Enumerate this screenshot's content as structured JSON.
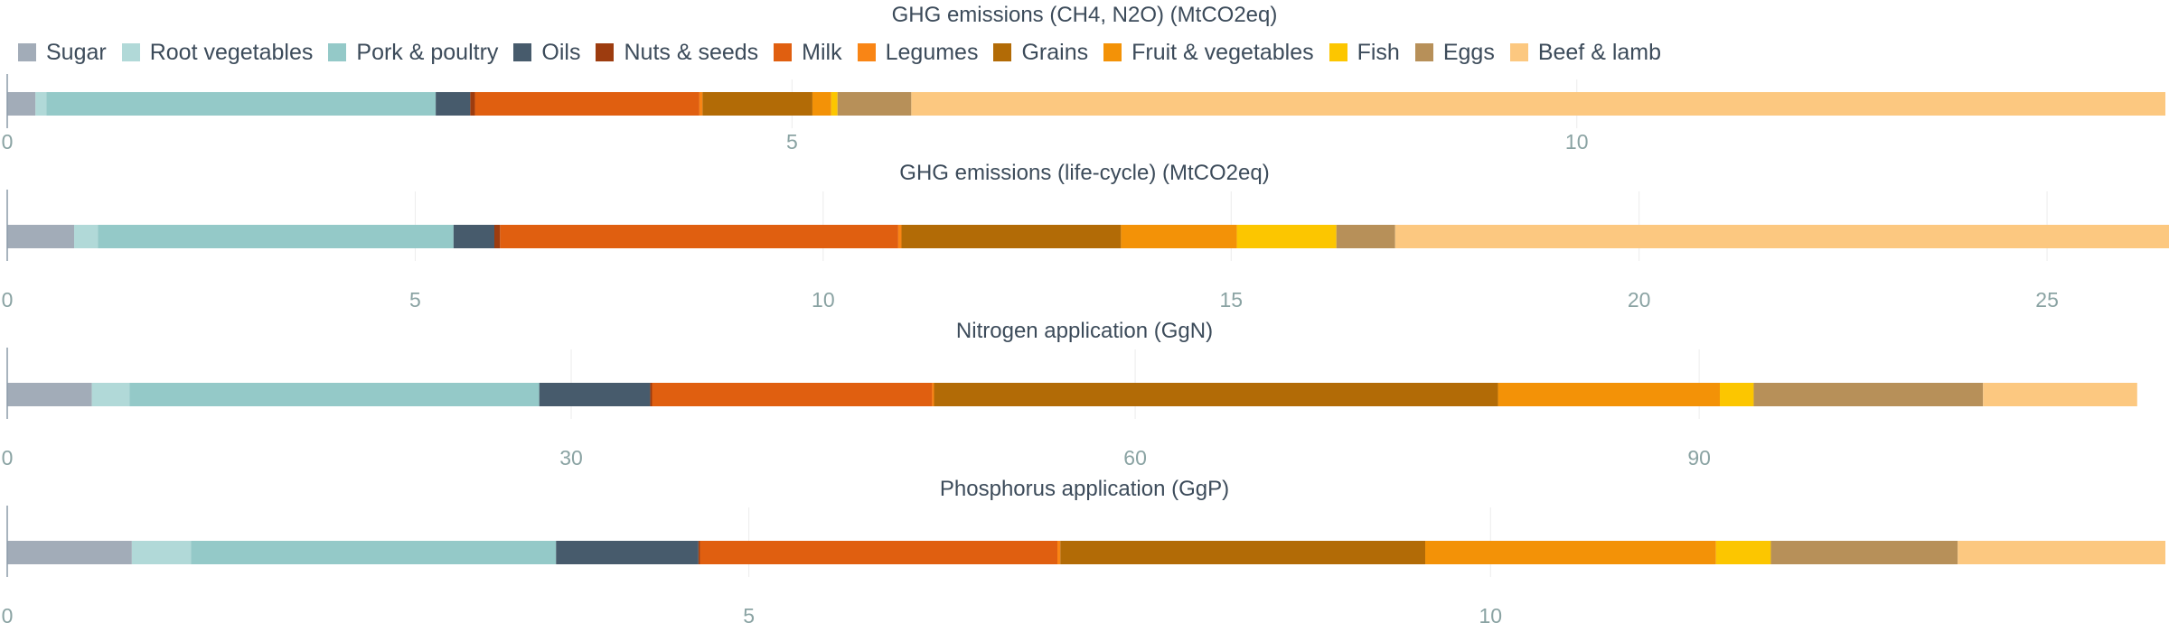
{
  "legend": [
    {
      "name": "Sugar",
      "color": "#a2acb8"
    },
    {
      "name": "Root vegetables",
      "color": "#b1d9d8"
    },
    {
      "name": "Pork & poultry",
      "color": "#94c9c8"
    },
    {
      "name": "Oils",
      "color": "#475b6c"
    },
    {
      "name": "Nuts & seeds",
      "color": "#9d3c0f"
    },
    {
      "name": "Milk",
      "color": "#e05f10"
    },
    {
      "name": "Legumes",
      "color": "#f98515"
    },
    {
      "name": "Grains",
      "color": "#b26b06"
    },
    {
      "name": "Fruit & vegetables",
      "color": "#f39207"
    },
    {
      "name": "Fish",
      "color": "#fcc600"
    },
    {
      "name": "Eggs",
      "color": "#b79059"
    },
    {
      "name": "Beef & lamb",
      "color": "#fcc880"
    }
  ],
  "chart_data": [
    {
      "type": "bar",
      "orientation": "horizontal",
      "stacked": true,
      "title": "GHG emissions (CH4, N2O) (MtCO2eq)",
      "xlim": [
        0,
        13.75
      ],
      "ticks": [
        0,
        5,
        10
      ],
      "tick_labels": [
        "0",
        "5",
        "10"
      ],
      "series": [
        {
          "name": "Sugar",
          "value": 0.18
        },
        {
          "name": "Root vegetables",
          "value": 0.07
        },
        {
          "name": "Pork & poultry",
          "value": 2.48
        },
        {
          "name": "Oils",
          "value": 0.22
        },
        {
          "name": "Nuts & seeds",
          "value": 0.03
        },
        {
          "name": "Milk",
          "value": 1.43
        },
        {
          "name": "Legumes",
          "value": 0.02
        },
        {
          "name": "Grains",
          "value": 0.7
        },
        {
          "name": "Fruit & vegetables",
          "value": 0.12
        },
        {
          "name": "Fish",
          "value": 0.04
        },
        {
          "name": "Eggs",
          "value": 0.47
        },
        {
          "name": "Beef & lamb",
          "value": 7.99
        }
      ]
    },
    {
      "type": "bar",
      "orientation": "horizontal",
      "stacked": true,
      "title": "GHG emissions (life-cycle) (MtCO2eq)",
      "xlim": [
        0,
        26.45
      ],
      "ticks": [
        0,
        5,
        10,
        15,
        20,
        25
      ],
      "tick_labels": [
        "0",
        "5",
        "10",
        "15",
        "20",
        "25"
      ],
      "series": [
        {
          "name": "Sugar",
          "value": 0.82
        },
        {
          "name": "Root vegetables",
          "value": 0.29
        },
        {
          "name": "Pork & poultry",
          "value": 4.36
        },
        {
          "name": "Oils",
          "value": 0.5
        },
        {
          "name": "Nuts & seeds",
          "value": 0.07
        },
        {
          "name": "Milk",
          "value": 4.88
        },
        {
          "name": "Legumes",
          "value": 0.04
        },
        {
          "name": "Grains",
          "value": 2.69
        },
        {
          "name": "Fruit & vegetables",
          "value": 1.42
        },
        {
          "name": "Fish",
          "value": 1.22
        },
        {
          "name": "Eggs",
          "value": 0.72
        },
        {
          "name": "Beef & lamb",
          "value": 9.49
        }
      ]
    },
    {
      "type": "bar",
      "orientation": "horizontal",
      "stacked": true,
      "title": "Nitrogen application (GgN)",
      "xlim": [
        0,
        114.8
      ],
      "ticks": [
        0,
        30,
        60,
        90
      ],
      "tick_labels": [
        "0",
        "30",
        "60",
        "90"
      ],
      "series": [
        {
          "name": "Sugar",
          "value": 4.5
        },
        {
          "name": "Root vegetables",
          "value": 2.0
        },
        {
          "name": "Pork & poultry",
          "value": 21.8
        },
        {
          "name": "Oils",
          "value": 5.9
        },
        {
          "name": "Nuts & seeds",
          "value": 0.1
        },
        {
          "name": "Milk",
          "value": 14.9
        },
        {
          "name": "Legumes",
          "value": 0.1
        },
        {
          "name": "Grains",
          "value": 30.0
        },
        {
          "name": "Fruit & vegetables",
          "value": 11.8
        },
        {
          "name": "Fish",
          "value": 1.8
        },
        {
          "name": "Eggs",
          "value": 12.2
        },
        {
          "name": "Beef & lamb",
          "value": 8.2
        }
      ]
    },
    {
      "type": "bar",
      "orientation": "horizontal",
      "stacked": true,
      "title": "Phosphorus application (GgP)",
      "xlim": [
        0,
        14.55
      ],
      "ticks": [
        0,
        5,
        10
      ],
      "tick_labels": [
        "0",
        "5",
        "10"
      ],
      "series": [
        {
          "name": "Sugar",
          "value": 0.84
        },
        {
          "name": "Root vegetables",
          "value": 0.4
        },
        {
          "name": "Pork & poultry",
          "value": 2.46
        },
        {
          "name": "Oils",
          "value": 0.96
        },
        {
          "name": "Nuts & seeds",
          "value": 0.01
        },
        {
          "name": "Milk",
          "value": 2.41
        },
        {
          "name": "Legumes",
          "value": 0.02
        },
        {
          "name": "Grains",
          "value": 2.46
        },
        {
          "name": "Fruit & vegetables",
          "value": 1.96
        },
        {
          "name": "Fish",
          "value": 0.37
        },
        {
          "name": "Eggs",
          "value": 1.26
        },
        {
          "name": "Beef & lamb",
          "value": 1.4
        }
      ]
    }
  ]
}
